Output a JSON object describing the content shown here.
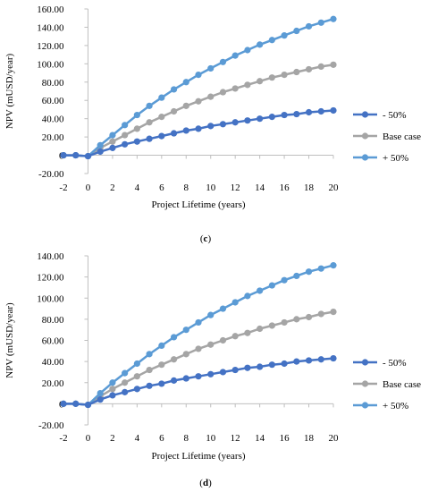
{
  "chart_data": [
    {
      "type": "line",
      "panel_label": "(c)",
      "xlabel": "Project Lifetime (years)",
      "ylabel": "NPV (mUSD/year)",
      "x": [
        -2,
        -1,
        0,
        1,
        2,
        3,
        4,
        5,
        6,
        7,
        8,
        9,
        10,
        11,
        12,
        13,
        14,
        15,
        16,
        17,
        18,
        19,
        20
      ],
      "xlim": [
        -2,
        20
      ],
      "xticks": [
        "-2",
        "0",
        "2",
        "4",
        "6",
        "8",
        "10",
        "12",
        "14",
        "16",
        "18",
        "20"
      ],
      "ylim": [
        -20,
        160
      ],
      "yticks": [
        "-20.00",
        "0",
        "20.00",
        "40.00",
        "60.00",
        "80.00",
        "100.00",
        "120.00",
        "140.00",
        "160.00"
      ],
      "legend_position": "right",
      "series": [
        {
          "name": "- 50%",
          "color": "#4472c4",
          "values": [
            0,
            0,
            -1,
            4,
            8,
            12,
            15,
            18,
            21,
            24,
            27,
            29,
            32,
            34,
            36,
            38,
            40,
            42,
            44,
            45,
            47,
            48,
            49
          ]
        },
        {
          "name": "Base case",
          "color": "#a5a5a5",
          "values": [
            0,
            0,
            -1,
            8,
            15,
            22,
            29,
            36,
            42,
            48,
            54,
            59,
            64,
            69,
            73,
            77,
            81,
            85,
            88,
            91,
            94,
            97,
            99
          ]
        },
        {
          "name": "+ 50%",
          "color": "#5b9bd5",
          "values": [
            0,
            0,
            -1,
            11,
            22,
            33,
            44,
            54,
            63,
            72,
            80,
            88,
            95,
            102,
            109,
            115,
            121,
            126,
            131,
            136,
            141,
            145,
            149
          ]
        }
      ]
    },
    {
      "type": "line",
      "panel_label": "(d)",
      "xlabel": "Project Lifetime (years)",
      "ylabel": "NPV (mUSD/year)",
      "x": [
        -2,
        -1,
        0,
        1,
        2,
        3,
        4,
        5,
        6,
        7,
        8,
        9,
        10,
        11,
        12,
        13,
        14,
        15,
        16,
        17,
        18,
        19,
        20
      ],
      "xlim": [
        -2,
        20
      ],
      "xticks": [
        "-2",
        "0",
        "2",
        "4",
        "6",
        "8",
        "10",
        "12",
        "14",
        "16",
        "18",
        "20"
      ],
      "ylim": [
        -20,
        140
      ],
      "yticks": [
        "-20.00",
        "0",
        "20.00",
        "40.00",
        "60.00",
        "80.00",
        "100.00",
        "120.00",
        "140.00"
      ],
      "legend_position": "right",
      "series": [
        {
          "name": "- 50%",
          "color": "#4472c4",
          "values": [
            0,
            0,
            -1,
            4,
            8,
            11,
            14,
            17,
            19,
            22,
            24,
            26,
            28,
            30,
            32,
            34,
            35,
            37,
            38,
            40,
            41,
            42,
            43
          ]
        },
        {
          "name": "Base case",
          "color": "#a5a5a5",
          "values": [
            0,
            0,
            -1,
            7,
            14,
            20,
            26,
            32,
            37,
            42,
            47,
            52,
            56,
            60,
            64,
            67,
            71,
            74,
            77,
            80,
            82,
            85,
            87
          ]
        },
        {
          "name": "+ 50%",
          "color": "#5b9bd5",
          "values": [
            0,
            0,
            -1,
            10,
            20,
            29,
            38,
            47,
            55,
            63,
            70,
            77,
            84,
            90,
            96,
            102,
            107,
            112,
            117,
            121,
            125,
            128,
            131
          ]
        }
      ]
    }
  ]
}
